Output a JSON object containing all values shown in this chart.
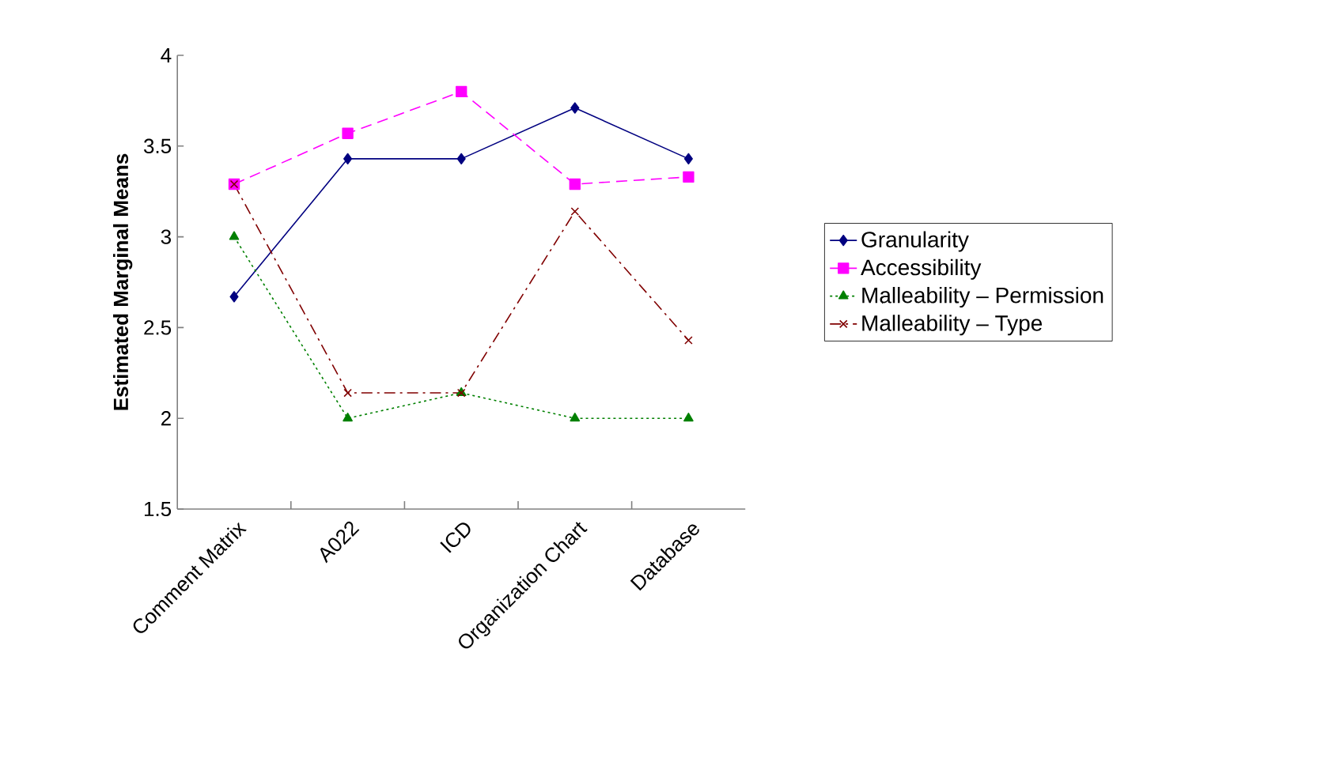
{
  "chart_data": {
    "type": "line",
    "ylabel": "Estimated Marginal Means",
    "categories": [
      "Comment Matrix",
      "A022",
      "ICD",
      "Organization Chart",
      "Database"
    ],
    "series": [
      {
        "name": "Granularity",
        "color": "#000080",
        "marker": "diamond",
        "line_style": "solid",
        "values": [
          2.67,
          3.43,
          3.43,
          3.71,
          3.43
        ]
      },
      {
        "name": "Accessibility",
        "color": "#ff00ff",
        "marker": "square",
        "line_style": "dashed",
        "values": [
          3.29,
          3.57,
          3.8,
          3.29,
          3.33
        ]
      },
      {
        "name": "Malleability – Permission",
        "color": "#008000",
        "marker": "triangle",
        "line_style": "dotted",
        "values": [
          3.0,
          2.0,
          2.14,
          2.0,
          2.0
        ]
      },
      {
        "name": "Malleability – Type",
        "color": "#800000",
        "marker": "cross",
        "line_style": "dashdot",
        "values": [
          3.29,
          2.14,
          2.14,
          3.14,
          2.43
        ]
      }
    ],
    "ylim": [
      1.5,
      4
    ],
    "yticks": [
      1.5,
      2,
      2.5,
      3,
      3.5,
      4
    ],
    "grid": false,
    "legend": "right"
  }
}
